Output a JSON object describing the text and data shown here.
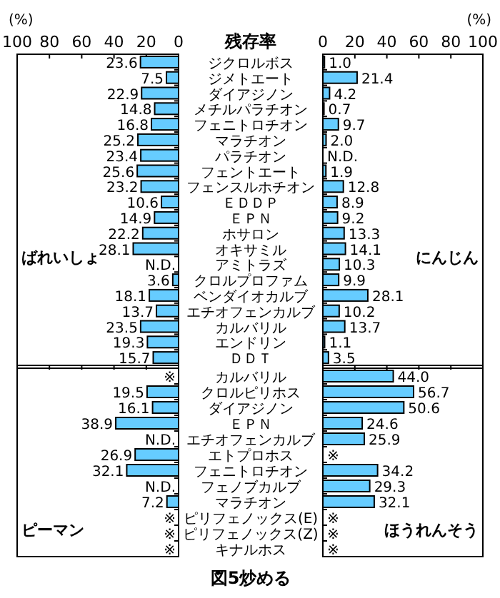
{
  "chart_data": [
    {
      "type": "bar",
      "orientation": "horizontal",
      "title": "残存率",
      "xlabel": "(%)",
      "subtitle": "ばれいしょ",
      "color": "#66ccff",
      "xlim": [
        100,
        0
      ],
      "xticks": [
        100,
        80,
        60,
        40,
        20,
        0
      ],
      "data_labels": true,
      "categories": [
        "ジクロルボス",
        "ジメトエート",
        "ダイアジノン",
        "メチルパラチオン",
        "フェニトロチオン",
        "マラチオン",
        "パラチオン",
        "フェントエート",
        "フェンスルホチオン",
        "ＥＤＤＰ",
        "ＥＰＮ",
        "ホサロン",
        "オキサミル",
        "アミトラズ",
        "クロルプロファム",
        "ベンダイオカルブ",
        "エチオフェンカルブ",
        "カルバリル",
        "エンドリン",
        "ＤＤＴ"
      ],
      "values": [
        23.6,
        7.5,
        22.9,
        14.8,
        16.8,
        25.2,
        23.4,
        25.6,
        23.2,
        10.6,
        14.9,
        22.2,
        28.1,
        null,
        3.6,
        18.1,
        13.7,
        23.5,
        19.3,
        15.7
      ],
      "value_labels": [
        "23.6",
        "7.5",
        "22.9",
        "14.8",
        "16.8",
        "25.2",
        "23.4",
        "25.6",
        "23.2",
        "10.6",
        "14.9",
        "22.2",
        "28.1",
        "N.D.",
        "3.6",
        "18.1",
        "13.7",
        "23.5",
        "19.3",
        "15.7"
      ]
    },
    {
      "type": "bar",
      "orientation": "horizontal",
      "xlabel": "(%)",
      "subtitle": "にんじん",
      "color": "#66ccff",
      "xlim": [
        0,
        100
      ],
      "xticks": [
        0,
        20,
        40,
        60,
        80,
        100
      ],
      "tick_labels": "x",
      "data_labels": true,
      "categories": [
        null,
        null,
        null,
        null,
        null,
        null,
        null,
        null,
        null,
        null,
        null,
        null,
        null,
        null,
        null,
        null,
        null,
        null,
        null,
        null
      ],
      "values": [
        1.0,
        21.4,
        4.2,
        0.7,
        9.7,
        2.0,
        null,
        1.9,
        12.8,
        8.9,
        9.2,
        13.3,
        14.1,
        10.3,
        9.9,
        28.1,
        10.2,
        13.7,
        1.1,
        3.5
      ],
      "value_labels": [
        "1.0",
        "21.4",
        "4.2",
        "0.7",
        "9.7",
        "2.0",
        "N.D.",
        "1.9",
        "12.8",
        "8.9",
        "9.2",
        "13.3",
        "14.1",
        "10.3",
        "9.9",
        "28.1",
        "10.2",
        "13.7",
        "1.1",
        "3.5"
      ]
    },
    {
      "type": "bar",
      "orientation": "horizontal",
      "subtitle": "ピーマン",
      "color": "#66ccff",
      "xlim": [
        100,
        0
      ],
      "tick_labels": "y",
      "data_labels": true,
      "categories": [
        "カルバリル",
        "クロルピリホス",
        "ダイアジノン",
        "ＥＰＮ",
        "エチオフェンカルブ",
        "エトプロホス",
        "フェニトロチオン",
        "フェノブカルブ",
        "マラチオン",
        "ピリフェノックス(E)",
        "ピリフェノックス(Z)",
        "キナルホス"
      ],
      "values": [
        null,
        19.5,
        16.1,
        38.9,
        null,
        26.9,
        32.1,
        null,
        7.2,
        null,
        null,
        null
      ],
      "value_labels": [
        "※",
        "19.5",
        "16.1",
        "38.9",
        "N.D.",
        "26.9",
        "32.1",
        "N.D.",
        "7.2",
        "※",
        "※",
        "※"
      ]
    },
    {
      "type": "bar",
      "orientation": "horizontal",
      "subtitle": "ほうれんそう",
      "color": "#66ccff",
      "xlim": [
        0,
        100
      ],
      "tick_labels": false,
      "data_labels": true,
      "annotations": [
        "図5炒める"
      ],
      "categories": [
        null,
        null,
        null,
        null,
        null,
        null,
        null,
        null,
        null,
        null,
        null,
        null
      ],
      "values": [
        44.0,
        56.7,
        50.6,
        24.6,
        25.9,
        null,
        34.2,
        29.3,
        32.1,
        null,
        null,
        null
      ],
      "value_labels": [
        "44.0",
        "56.7",
        "50.6",
        "24.6",
        "25.9",
        "※",
        "34.2",
        "29.3",
        "32.1",
        "※",
        "※",
        "※"
      ]
    }
  ]
}
